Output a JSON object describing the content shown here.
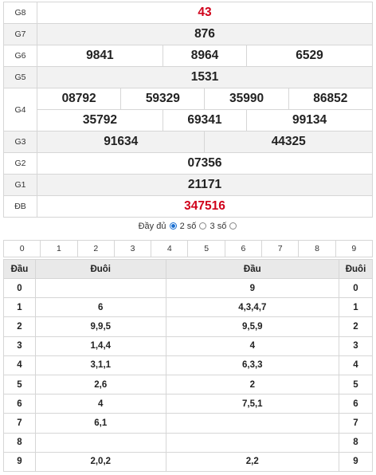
{
  "results": {
    "g8": {
      "label": "G8",
      "numbers": [
        "43"
      ]
    },
    "g7": {
      "label": "G7",
      "numbers": [
        "876"
      ]
    },
    "g6": {
      "label": "G6",
      "numbers": [
        "9841",
        "8964",
        "6529"
      ]
    },
    "g5": {
      "label": "G5",
      "numbers": [
        "1531"
      ]
    },
    "g4": {
      "label": "G4",
      "numbers": [
        "08792",
        "59329",
        "35990",
        "86852",
        "35792",
        "69341",
        "99134"
      ]
    },
    "g3": {
      "label": "G3",
      "numbers": [
        "91634",
        "44325"
      ]
    },
    "g2": {
      "label": "G2",
      "numbers": [
        "07356"
      ]
    },
    "g1": {
      "label": "G1",
      "numbers": [
        "21171"
      ]
    },
    "db": {
      "label": "ĐB",
      "numbers": [
        "347516"
      ]
    }
  },
  "view_mode": {
    "full_label": "Đầy đủ",
    "two_label": "2 số",
    "three_label": "3 số",
    "selected": "2 số"
  },
  "digit_filter": [
    "0",
    "1",
    "2",
    "3",
    "4",
    "5",
    "6",
    "7",
    "8",
    "9"
  ],
  "loto": {
    "headers": [
      "Đầu",
      "Đuôi",
      "Đầu",
      "Đuôi"
    ],
    "rows": [
      {
        "dau": "0",
        "duoi": "",
        "dau2": "9",
        "duoi2": "0"
      },
      {
        "dau": "1",
        "duoi": "6",
        "dau2": "4,3,4,7",
        "duoi2": "1"
      },
      {
        "dau": "2",
        "duoi": "9,9,5",
        "dau2": "9,5,9",
        "duoi2": "2"
      },
      {
        "dau": "3",
        "duoi": "1,4,4",
        "dau2": "4",
        "duoi2": "3"
      },
      {
        "dau": "4",
        "duoi": "3,1,1",
        "dau2": "6,3,3",
        "duoi2": "4"
      },
      {
        "dau": "5",
        "duoi": "2,6",
        "dau2": "2",
        "duoi2": "5"
      },
      {
        "dau": "6",
        "duoi": "4",
        "dau2": "7,5,1",
        "duoi2": "6"
      },
      {
        "dau": "7",
        "duoi": "6,1",
        "dau2": "",
        "duoi2": "7"
      },
      {
        "dau": "8",
        "duoi": "",
        "dau2": "",
        "duoi2": "8"
      },
      {
        "dau": "9",
        "duoi": "2,0,2",
        "dau2": "2,2",
        "duoi2": "9"
      }
    ]
  },
  "colors": {
    "special": "#d0021b",
    "radio_selected": "#1a6fd1",
    "row_alt": "#f2f2f2",
    "header_bg": "#e9e9e9"
  }
}
